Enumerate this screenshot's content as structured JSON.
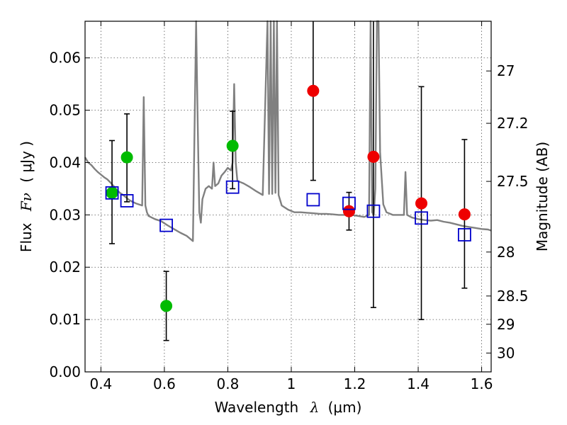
{
  "chart_data": {
    "type": "scatter",
    "xlabel": "Wavelength",
    "xlabel_symbol": "λ",
    "xlabel_unit": "(μm)",
    "ylabel": "Flux",
    "ylabel_symbol": "Fν",
    "ylabel_unit": "( μJy )",
    "y2label": "Magnitude (AB)",
    "xlim": [
      0.35,
      1.63
    ],
    "ylim": [
      0.0,
      0.067
    ],
    "grid": true,
    "x_ticks": [
      0.4,
      0.6,
      0.8,
      1.0,
      1.2,
      1.4,
      1.6
    ],
    "x_tick_labels": [
      "0.4",
      "0.6",
      "0.8",
      "1",
      "1.2",
      "1.4",
      "1.6"
    ],
    "y_ticks": [
      0.0,
      0.01,
      0.02,
      0.03,
      0.04,
      0.05,
      0.06
    ],
    "y_tick_labels": [
      "0.00",
      "0.01",
      "0.02",
      "0.03",
      "0.04",
      "0.05",
      "0.06"
    ],
    "y2_ticks": [
      {
        "flux": 0.0575,
        "label": "27"
      },
      {
        "flux": 0.0475,
        "label": "27.2"
      },
      {
        "flux": 0.0364,
        "label": "27.5"
      },
      {
        "flux": 0.0229,
        "label": "28"
      },
      {
        "flux": 0.0145,
        "label": "28.5"
      },
      {
        "flux": 0.0091,
        "label": "29"
      },
      {
        "flux": 0.0036,
        "label": "30"
      }
    ],
    "colors": {
      "model": "#808080",
      "model_photometry": "#0000cc",
      "green_points": "#00bb00",
      "red_points": "#ee0000",
      "errorbar": "#000000",
      "grid": "#555555"
    },
    "series": [
      {
        "name": "model spectrum",
        "type": "line",
        "x": [
          0.35,
          0.36,
          0.37,
          0.38,
          0.39,
          0.4,
          0.41,
          0.42,
          0.43,
          0.44,
          0.45,
          0.46,
          0.47,
          0.48,
          0.49,
          0.5,
          0.51,
          0.52,
          0.53,
          0.535,
          0.54,
          0.545,
          0.55,
          0.57,
          0.59,
          0.61,
          0.63,
          0.65,
          0.67,
          0.69,
          0.7,
          0.705,
          0.71,
          0.715,
          0.72,
          0.73,
          0.74,
          0.75,
          0.755,
          0.76,
          0.77,
          0.78,
          0.79,
          0.8,
          0.81,
          0.815,
          0.82,
          0.825,
          0.83,
          0.85,
          0.87,
          0.89,
          0.91,
          0.925,
          0.93,
          0.935,
          0.94,
          0.945,
          0.95,
          0.955,
          0.96,
          0.97,
          0.99,
          1.01,
          1.03,
          1.05,
          1.07,
          1.09,
          1.11,
          1.13,
          1.15,
          1.17,
          1.19,
          1.21,
          1.23,
          1.245,
          1.25,
          1.255,
          1.26,
          1.265,
          1.27,
          1.275,
          1.28,
          1.29,
          1.3,
          1.32,
          1.34,
          1.355,
          1.36,
          1.365,
          1.38,
          1.4,
          1.42,
          1.44,
          1.46,
          1.48,
          1.5,
          1.52,
          1.54,
          1.56,
          1.58,
          1.6,
          1.62,
          1.63
        ],
        "y": [
          0.041,
          0.04,
          0.0395,
          0.0388,
          0.0382,
          0.0377,
          0.0372,
          0.0368,
          0.0362,
          0.0355,
          0.0348,
          0.0342,
          0.0338,
          0.0333,
          0.0328,
          0.0325,
          0.0322,
          0.032,
          0.0318,
          0.0525,
          0.0318,
          0.0305,
          0.0298,
          0.0292,
          0.0288,
          0.028,
          0.0273,
          0.0266,
          0.026,
          0.025,
          0.067,
          0.048,
          0.0305,
          0.0285,
          0.033,
          0.035,
          0.0355,
          0.035,
          0.04,
          0.0355,
          0.036,
          0.0375,
          0.0382,
          0.039,
          0.0385,
          0.04,
          0.055,
          0.04,
          0.0365,
          0.036,
          0.0353,
          0.0345,
          0.0338,
          0.067,
          0.034,
          0.067,
          0.034,
          0.067,
          0.0342,
          0.067,
          0.0338,
          0.0318,
          0.031,
          0.0305,
          0.0305,
          0.0304,
          0.0303,
          0.0302,
          0.0302,
          0.0301,
          0.03,
          0.03,
          0.03,
          0.0298,
          0.0296,
          0.03,
          0.067,
          0.0305,
          0.03,
          0.035,
          0.067,
          0.067,
          0.042,
          0.032,
          0.0305,
          0.03,
          0.03,
          0.03,
          0.0382,
          0.03,
          0.0295,
          0.0292,
          0.029,
          0.0289,
          0.029,
          0.0287,
          0.0285,
          0.0282,
          0.0279,
          0.0277,
          0.0275,
          0.0273,
          0.0272,
          0.027
        ]
      },
      {
        "name": "model photometry",
        "type": "open-squares",
        "x": [
          0.435,
          0.482,
          0.606,
          0.815,
          1.069,
          1.182,
          1.259,
          1.41,
          1.546
        ],
        "y": [
          0.0342,
          0.0327,
          0.028,
          0.0353,
          0.0329,
          0.0322,
          0.0307,
          0.0294,
          0.0262
        ]
      },
      {
        "name": "observed (green)",
        "type": "points-with-errorbars",
        "x": [
          0.435,
          0.482,
          0.606,
          0.815
        ],
        "y": [
          0.0342,
          0.041,
          0.0126,
          0.0432
        ],
        "y_low": [
          0.0245,
          0.0325,
          0.006,
          0.035
        ],
        "y_high": [
          0.0442,
          0.0493,
          0.0192,
          0.0498
        ]
      },
      {
        "name": "observed (red)",
        "type": "points-with-errorbars",
        "x": [
          1.069,
          1.182,
          1.259,
          1.41,
          1.546
        ],
        "y": [
          0.0537,
          0.0307,
          0.0411,
          0.0322,
          0.0301
        ],
        "y_low": [
          0.0366,
          0.0271,
          0.0123,
          0.01,
          0.016
        ],
        "y_high": [
          0.067,
          0.0343,
          0.067,
          0.0545,
          0.0444
        ]
      }
    ]
  }
}
